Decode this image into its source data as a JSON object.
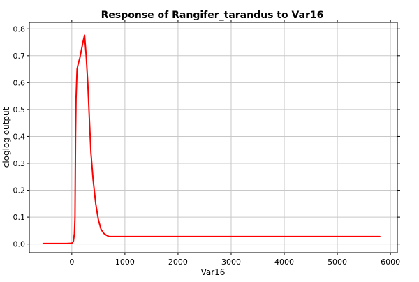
{
  "chart_data": {
    "type": "line",
    "title": "Response of Rangifer_tarandus to Var16",
    "xlabel": "Var16",
    "ylabel": "cloglog output",
    "xlim": [
      -800,
      6130
    ],
    "ylim": [
      -0.032,
      0.824
    ],
    "xticks": [
      0,
      1000,
      2000,
      3000,
      4000,
      5000,
      6000
    ],
    "yticks": [
      0.0,
      0.1,
      0.2,
      0.3,
      0.4,
      0.5,
      0.6,
      0.7,
      0.8
    ],
    "xtick_labels": [
      "0",
      "1000",
      "2000",
      "3000",
      "4000",
      "5000",
      "6000"
    ],
    "ytick_labels": [
      "0.0",
      "0.1",
      "0.2",
      "0.3",
      "0.4",
      "0.5",
      "0.6",
      "0.7",
      "0.8"
    ],
    "grid": true,
    "series": [
      {
        "color": "#ff0000",
        "x": [
          -540,
          -100,
          0,
          30,
          50,
          60,
          70,
          80,
          90,
          100,
          120,
          150,
          180,
          210,
          240,
          270,
          300,
          330,
          360,
          400,
          450,
          500,
          550,
          600,
          650,
          700,
          800,
          1000,
          2000,
          3000,
          4000,
          5000,
          5800
        ],
        "y": [
          0.002,
          0.002,
          0.003,
          0.01,
          0.04,
          0.1,
          0.4,
          0.54,
          0.6,
          0.65,
          0.67,
          0.69,
          0.72,
          0.75,
          0.776,
          0.7,
          0.6,
          0.47,
          0.34,
          0.24,
          0.15,
          0.09,
          0.055,
          0.04,
          0.033,
          0.028,
          0.028,
          0.028,
          0.028,
          0.028,
          0.028,
          0.028,
          0.028
        ]
      }
    ]
  }
}
